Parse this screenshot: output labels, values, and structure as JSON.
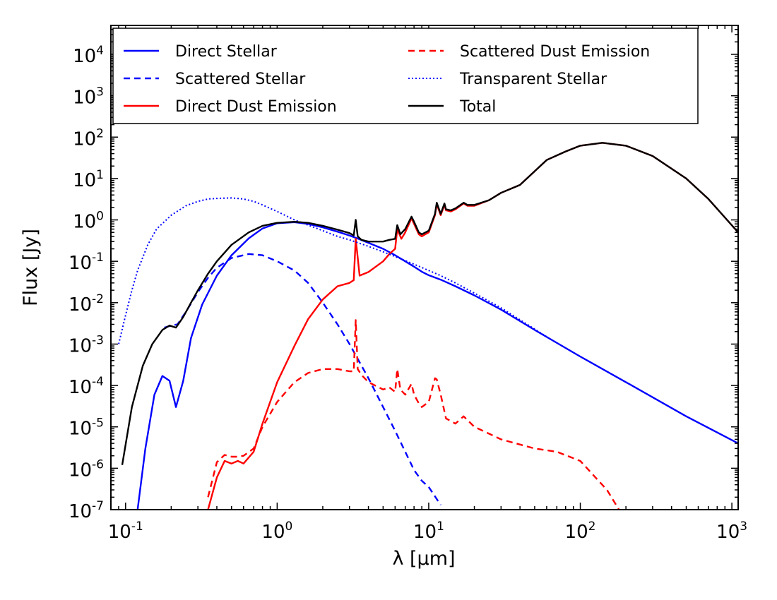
{
  "chart_data": {
    "type": "line",
    "title": "",
    "xlabel": "λ [μm]",
    "ylabel": "Flux [Jy]",
    "xscale": "log",
    "yscale": "log",
    "xlim": [
      0.08,
      1100
    ],
    "ylim": [
      1e-07,
      50000
    ],
    "grid": false,
    "legend_location": "top",
    "x_ticks": [
      {
        "value": 0.1,
        "base": "10",
        "exp": "-1"
      },
      {
        "value": 1,
        "base": "10",
        "exp": "0"
      },
      {
        "value": 10,
        "base": "10",
        "exp": "1"
      },
      {
        "value": 100,
        "base": "10",
        "exp": "2"
      },
      {
        "value": 1000,
        "base": "10",
        "exp": "3"
      }
    ],
    "y_ticks": [
      {
        "value": 1e-07,
        "base": "10",
        "exp": "-7"
      },
      {
        "value": 1e-06,
        "base": "10",
        "exp": "-6"
      },
      {
        "value": 1e-05,
        "base": "10",
        "exp": "-5"
      },
      {
        "value": 0.0001,
        "base": "10",
        "exp": "-4"
      },
      {
        "value": 0.001,
        "base": "10",
        "exp": "-3"
      },
      {
        "value": 0.01,
        "base": "10",
        "exp": "-2"
      },
      {
        "value": 0.1,
        "base": "10",
        "exp": "-1"
      },
      {
        "value": 1,
        "base": "10",
        "exp": "0"
      },
      {
        "value": 10,
        "base": "10",
        "exp": "1"
      },
      {
        "value": 100,
        "base": "10",
        "exp": "2"
      },
      {
        "value": 1000,
        "base": "10",
        "exp": "3"
      },
      {
        "value": 10000,
        "base": "10",
        "exp": "4"
      }
    ],
    "series": [
      {
        "name": "Direct Stellar",
        "color": "#0000ff",
        "style": "solid",
        "x": [
          0.12,
          0.135,
          0.155,
          0.175,
          0.195,
          0.215,
          0.24,
          0.27,
          0.32,
          0.4,
          0.5,
          0.65,
          0.8,
          1.0,
          1.3,
          1.6,
          2.0,
          2.5,
          3.0,
          3.5,
          4.0,
          5.0,
          6.0,
          7.0,
          8.0,
          9.0,
          10.0,
          12.0,
          15.0,
          20.0,
          30.0,
          50.0,
          100.0,
          200.0,
          500.0,
          1100.0
        ],
        "y": [
          1e-07,
          3e-06,
          6e-05,
          0.00017,
          0.00013,
          3e-05,
          0.00013,
          0.0014,
          0.009,
          0.045,
          0.14,
          0.36,
          0.62,
          0.83,
          0.88,
          0.8,
          0.66,
          0.52,
          0.42,
          0.34,
          0.28,
          0.2,
          0.14,
          0.1,
          0.074,
          0.056,
          0.046,
          0.036,
          0.025,
          0.015,
          0.0068,
          0.0022,
          0.0005,
          0.00012,
          1.8e-05,
          4e-06
        ]
      },
      {
        "name": "Scattered Stellar",
        "color": "#0000ff",
        "style": "dashed",
        "x": [
          0.18,
          0.2,
          0.22,
          0.25,
          0.3,
          0.35,
          0.4,
          0.5,
          0.65,
          0.8,
          1.0,
          1.3,
          1.6,
          2.0,
          2.5,
          3.0,
          4.0,
          5.0,
          6.0,
          7.0,
          8.0,
          9.0,
          10.0,
          12.0
        ],
        "y": [
          0.0025,
          0.0028,
          0.003,
          0.006,
          0.018,
          0.04,
          0.07,
          0.12,
          0.15,
          0.14,
          0.1,
          0.06,
          0.03,
          0.01,
          0.003,
          0.001,
          0.00015,
          3e-05,
          8e-06,
          2.5e-06,
          9e-07,
          5e-07,
          3.5e-07,
          1.3e-07
        ]
      },
      {
        "name": "Direct Dust Emission",
        "color": "#ff0000",
        "style": "solid",
        "x": [
          0.35,
          0.4,
          0.45,
          0.5,
          0.55,
          0.6,
          0.7,
          0.8,
          1.0,
          1.3,
          1.6,
          2.0,
          2.5,
          3.0,
          3.2,
          3.3,
          3.5,
          4.0,
          5.0,
          5.5,
          6.0,
          6.2,
          6.6,
          7.0,
          7.7,
          8.0,
          8.6,
          9.0,
          9.5,
          10.0,
          11.0,
          11.3,
          12.0,
          12.7,
          13.0,
          14.0,
          15.0,
          17.0,
          18.0,
          20.0,
          25.0,
          30.0,
          40.0,
          50.0,
          60.0,
          80.0,
          100.0,
          140.0,
          200.0,
          300.0,
          500.0,
          700.0,
          1100.0
        ],
        "y": [
          1e-07,
          6e-07,
          1.5e-06,
          1.3e-06,
          1.5e-06,
          1.3e-06,
          2.5e-06,
          1.2e-05,
          0.00012,
          0.0009,
          0.004,
          0.012,
          0.025,
          0.03,
          0.035,
          0.35,
          0.045,
          0.055,
          0.1,
          0.15,
          0.2,
          0.6,
          0.35,
          0.5,
          1.1,
          0.8,
          0.45,
          0.4,
          0.45,
          0.5,
          1.3,
          2.4,
          1.3,
          2.3,
          1.7,
          1.6,
          1.8,
          2.5,
          2.2,
          2.2,
          3.0,
          4.5,
          7.0,
          15.0,
          28.0,
          45.0,
          62.0,
          73.0,
          62.0,
          35.0,
          10.0,
          3.2,
          0.5
        ]
      },
      {
        "name": "Scattered Dust Emission",
        "color": "#ff0000",
        "style": "dashed",
        "x": [
          0.35,
          0.4,
          0.45,
          0.5,
          0.55,
          0.6,
          0.7,
          0.8,
          1.0,
          1.3,
          1.6,
          2.0,
          2.5,
          3.0,
          3.2,
          3.3,
          3.4,
          3.6,
          4.0,
          5.0,
          5.5,
          6.0,
          6.2,
          6.5,
          7.0,
          7.7,
          8.0,
          8.5,
          9.0,
          10.0,
          11.0,
          11.3,
          12.0,
          13.0,
          15.0,
          17.0,
          20.0,
          30.0,
          50.0,
          70.0,
          100.0,
          150.0,
          180.0
        ],
        "y": [
          2e-07,
          1.4e-06,
          2.1e-06,
          1.9e-06,
          1.9e-06,
          2e-06,
          3e-06,
          1e-05,
          4e-05,
          0.00012,
          0.0002,
          0.00025,
          0.00025,
          0.00022,
          0.00022,
          0.0038,
          0.00025,
          0.00018,
          0.00012,
          8e-05,
          9e-05,
          7e-05,
          0.00025,
          8e-05,
          6e-05,
          0.00011,
          6e-05,
          4e-05,
          3e-05,
          4e-05,
          0.00015,
          0.00014,
          6e-05,
          1.6e-05,
          1.2e-05,
          1.8e-05,
          1e-05,
          5e-06,
          3e-06,
          2.5e-06,
          1.5e-06,
          3e-07,
          1e-07
        ]
      },
      {
        "name": "Transparent Stellar",
        "color": "#0000ff",
        "style": "dotted",
        "x": [
          0.09,
          0.1,
          0.11,
          0.12,
          0.14,
          0.16,
          0.2,
          0.25,
          0.3,
          0.35,
          0.4,
          0.5,
          0.6,
          0.7,
          0.8,
          1.0,
          1.3,
          1.6,
          2.0,
          2.5,
          3.0,
          4.0,
          5.0,
          6.0,
          8.0,
          10.0,
          12.0,
          15.0,
          20.0,
          30.0,
          50.0,
          60.0
        ],
        "y": [
          0.001,
          0.005,
          0.02,
          0.06,
          0.25,
          0.6,
          1.3,
          2.2,
          2.8,
          3.2,
          3.3,
          3.4,
          3.2,
          2.8,
          2.3,
          1.6,
          1.0,
          0.75,
          0.55,
          0.4,
          0.33,
          0.23,
          0.17,
          0.13,
          0.085,
          0.06,
          0.045,
          0.03,
          0.017,
          0.0075,
          0.0023,
          0.0015
        ]
      },
      {
        "name": "Total",
        "color": "#000000",
        "style": "solid",
        "x": [
          0.095,
          0.11,
          0.13,
          0.15,
          0.175,
          0.195,
          0.215,
          0.24,
          0.27,
          0.3,
          0.35,
          0.4,
          0.5,
          0.65,
          0.8,
          1.0,
          1.3,
          1.6,
          2.0,
          2.5,
          3.0,
          3.2,
          3.3,
          3.4,
          3.6,
          4.0,
          5.0,
          5.5,
          6.0,
          6.2,
          6.5,
          7.0,
          7.7,
          8.0,
          8.6,
          9.0,
          10.0,
          11.0,
          11.3,
          12.0,
          12.7,
          13.0,
          14.0,
          15.0,
          17.0,
          18.0,
          20.0,
          25.0,
          30.0,
          40.0,
          50.0,
          60.0,
          80.0,
          100.0,
          140.0,
          200.0,
          300.0,
          500.0,
          700.0,
          1100.0
        ],
        "y": [
          1.2e-06,
          3e-05,
          0.0003,
          0.001,
          0.0022,
          0.0028,
          0.0025,
          0.0045,
          0.01,
          0.02,
          0.05,
          0.1,
          0.25,
          0.5,
          0.72,
          0.85,
          0.9,
          0.85,
          0.72,
          0.58,
          0.48,
          0.42,
          1.0,
          0.4,
          0.33,
          0.3,
          0.3,
          0.33,
          0.35,
          0.75,
          0.45,
          0.6,
          1.2,
          0.9,
          0.5,
          0.45,
          0.55,
          1.4,
          2.6,
          1.4,
          2.5,
          1.8,
          1.7,
          1.9,
          2.6,
          2.3,
          2.3,
          3.0,
          4.5,
          7.0,
          15.0,
          28.0,
          45.0,
          62.0,
          73.0,
          62.0,
          35.0,
          10.0,
          3.2,
          0.5
        ]
      }
    ],
    "legend": [
      {
        "label": "Direct Stellar",
        "color": "#0000ff",
        "style": "solid"
      },
      {
        "label": "Scattered Stellar",
        "color": "#0000ff",
        "style": "dashed"
      },
      {
        "label": "Direct Dust Emission",
        "color": "#ff0000",
        "style": "solid"
      },
      {
        "label": "Scattered Dust Emission",
        "color": "#ff0000",
        "style": "dashed"
      },
      {
        "label": "Transparent Stellar",
        "color": "#0000ff",
        "style": "dotted"
      },
      {
        "label": "Total",
        "color": "#000000",
        "style": "solid"
      }
    ]
  }
}
